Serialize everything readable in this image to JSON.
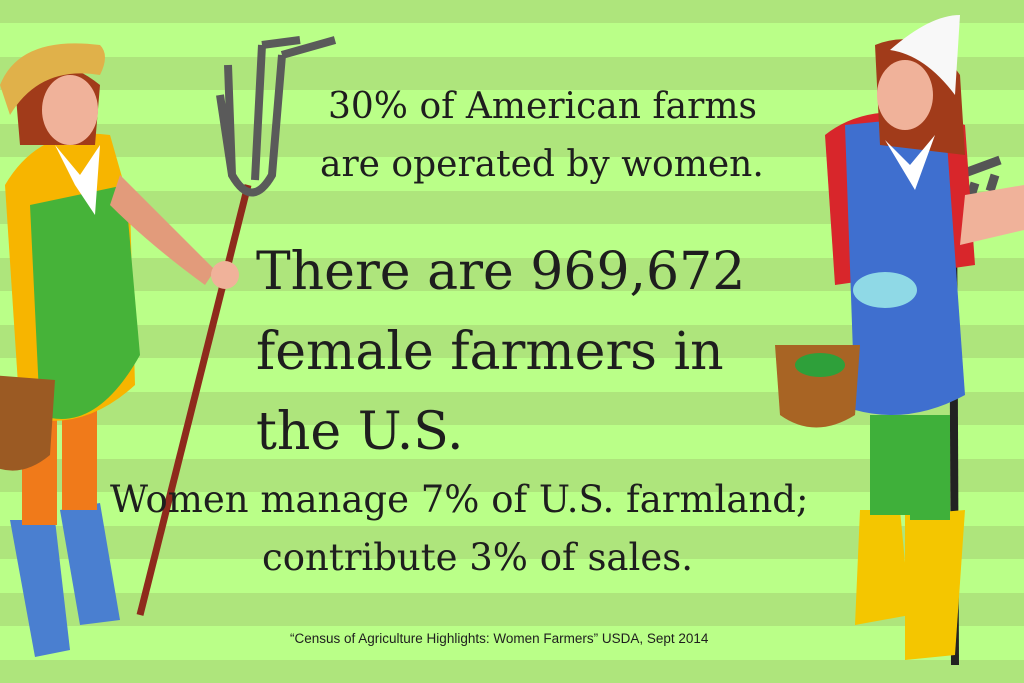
{
  "headline": {
    "line1": "30% of American farms",
    "line2": "are operated by women."
  },
  "main_stat": "There are 969,672 female farmers in the U.S.",
  "secondary": {
    "line1": "Women manage 7% of U.S. farmland;",
    "line2": "contribute 3% of sales."
  },
  "citation": "“Census of Agriculture Highlights: Women Farmers” USDA, Sept 2014",
  "colors": {
    "stripe_dark": "#aee57c",
    "stripe_light": "#baff88",
    "text": "#1e1e1e"
  },
  "illustrations": [
    "woman-farmer-with-pitchfork",
    "woman-farmer-with-rake"
  ]
}
